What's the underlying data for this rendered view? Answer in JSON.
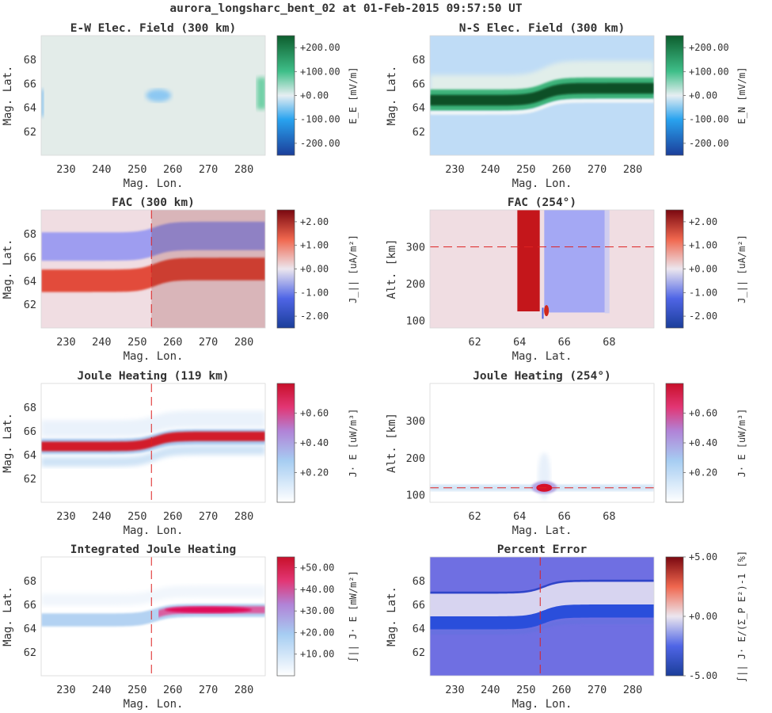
{
  "figure": {
    "suptitle": "aurora_longsharc_bent_02 at 01-Feb-2015 09:57:50 UT"
  },
  "colors": {
    "green": "#1a7a48",
    "blue": "#1e78d6",
    "deepblue": "#1b3e9a",
    "red": "#c0191d",
    "crimson": "#c5102a",
    "lavender": "#d7d4f0",
    "pink": "#f0dde2"
  },
  "chart_data": [
    {
      "id": "ew_field",
      "type": "heatmap",
      "title": "E-W Elec. Field (300 km)",
      "xlabel": "Mag. Lon.",
      "ylabel": "Mag. Lat.",
      "xticks": [
        "230",
        "240",
        "250",
        "260",
        "270",
        "280"
      ],
      "yticks": [
        "62",
        "64",
        "66",
        "68"
      ],
      "xlim": [
        223,
        286
      ],
      "ylim": [
        60,
        70
      ],
      "colorbar": {
        "label": "E_E [mV/m]",
        "ticks": [
          "+200.00",
          "+100.00",
          "+0.00",
          "-100.00",
          "-200.00"
        ],
        "range": [
          -250,
          250
        ],
        "colormap": "diverging green-white-blue"
      },
      "features": [
        "weak negative patch near lon 256, lat 65",
        "weak positive band at east edge lon 284",
        "weak negative band at west edge"
      ]
    },
    {
      "id": "ns_field",
      "type": "heatmap",
      "title": "N-S Elec. Field (300 km)",
      "xlabel": "Mag. Lon.",
      "ylabel": "Mag. Lat.",
      "xticks": [
        "230",
        "240",
        "250",
        "260",
        "270",
        "280"
      ],
      "yticks": [
        "62",
        "64",
        "66",
        "68"
      ],
      "xlim": [
        223,
        286
      ],
      "ylim": [
        60,
        70
      ],
      "colorbar": {
        "label": "E_N [mV/m]",
        "ticks": [
          "+200.00",
          "+100.00",
          "+0.00",
          "-100.00",
          "-200.00"
        ],
        "range": [
          -250,
          250
        ],
        "colormap": "diverging green-white-blue"
      },
      "features": [
        "strong positive arc lat 64.6 west bending to 65.6 east near lon 254",
        "negative field north and south of arc"
      ]
    },
    {
      "id": "fac_map",
      "type": "heatmap",
      "title": "FAC (300 km)",
      "xlabel": "Mag. Lon.",
      "ylabel": "Mag. Lat.",
      "xticks": [
        "230",
        "240",
        "250",
        "260",
        "270",
        "280"
      ],
      "yticks": [
        "62",
        "64",
        "66",
        "68"
      ],
      "xlim": [
        223,
        286
      ],
      "ylim": [
        60,
        70
      ],
      "cut_lon": 254,
      "colorbar": {
        "label": "J_|| [uA/m²]",
        "ticks": [
          "+2.00",
          "+1.00",
          "+0.00",
          "-1.00",
          "-2.00"
        ],
        "range": [
          -2.5,
          2.5
        ],
        "colormap": "coolwarm"
      },
      "features": [
        "upward current band lat 64 west to 65 east, about +1.5",
        "downward current band lat 67 west to 67.8 east, about -0.8"
      ]
    },
    {
      "id": "fac_cut",
      "type": "heatmap",
      "title": "FAC (254°)",
      "xlabel": "Mag. Lat.",
      "ylabel": "Alt. [km]",
      "xticks": [
        "62",
        "64",
        "66",
        "68"
      ],
      "yticks": [
        "100",
        "200",
        "300"
      ],
      "xlim": [
        60,
        70
      ],
      "ylim": [
        80,
        400
      ],
      "cut_alt": 300,
      "colorbar": {
        "label": "J_|| [uA/m²]",
        "ticks": [
          "+2.00",
          "+1.00",
          "+0.00",
          "-1.00",
          "-2.00"
        ],
        "range": [
          -2.5,
          2.5
        ],
        "colormap": "coolwarm"
      },
      "features": [
        "upward column lat 63.9-64.9 above 125 km",
        "downward column lat 65.1-67.8 above 120 km"
      ]
    },
    {
      "id": "joule_map",
      "type": "heatmap",
      "title": "Joule Heating (119 km)",
      "xlabel": "Mag. Lon.",
      "ylabel": "Mag. Lat.",
      "xticks": [
        "230",
        "240",
        "250",
        "260",
        "270",
        "280"
      ],
      "yticks": [
        "62",
        "64",
        "66",
        "68"
      ],
      "xlim": [
        223,
        286
      ],
      "ylim": [
        60,
        70
      ],
      "cut_lon": 254,
      "colorbar": {
        "label": "J· E [uW/m³]",
        "ticks": [
          "+0.60",
          "+0.40",
          "+0.20"
        ],
        "range": [
          0,
          0.8
        ],
        "colormap": "white-blue-red"
      },
      "features": [
        "heating band along arc, up to ~0.7"
      ]
    },
    {
      "id": "joule_cut",
      "type": "heatmap",
      "title": "Joule Heating (254°)",
      "xlabel": "Mag. Lat.",
      "ylabel": "Alt. [km]",
      "xticks": [
        "62",
        "64",
        "66",
        "68"
      ],
      "yticks": [
        "100",
        "200",
        "300"
      ],
      "xlim": [
        60,
        70
      ],
      "ylim": [
        80,
        400
      ],
      "cut_alt": 119,
      "colorbar": {
        "label": "J· E [uW/m³]",
        "ticks": [
          "+0.60",
          "+0.40",
          "+0.20"
        ],
        "range": [
          0,
          0.8
        ],
        "colormap": "white-blue-red"
      },
      "features": [
        "peak at lat 65.1, alt 119 km"
      ]
    },
    {
      "id": "int_joule",
      "type": "heatmap",
      "title": "Integrated Joule Heating",
      "xlabel": "Mag. Lon.",
      "ylabel": "Mag. Lat.",
      "xticks": [
        "230",
        "240",
        "250",
        "260",
        "270",
        "280"
      ],
      "yticks": [
        "62",
        "64",
        "66",
        "68"
      ],
      "xlim": [
        223,
        286
      ],
      "ylim": [
        60,
        70
      ],
      "cut_lon": 254,
      "colorbar": {
        "label": "∫|| J· E [mW/m²]",
        "ticks": [
          "+50.00",
          "+40.00",
          "+30.00",
          "+20.00",
          "+10.00"
        ],
        "range": [
          0,
          55
        ],
        "colormap": "white-blue-red"
      },
      "features": [
        "band along arc ~15 west, ~45 east"
      ]
    },
    {
      "id": "pct_error",
      "type": "heatmap",
      "title": "Percent Error",
      "xlabel": "Mag. Lon.",
      "ylabel": "Mag. Lat.",
      "xticks": [
        "230",
        "240",
        "250",
        "260",
        "270",
        "280"
      ],
      "yticks": [
        "62",
        "64",
        "66",
        "68"
      ],
      "xlim": [
        223,
        286
      ],
      "ylim": [
        60,
        70
      ],
      "cut_lon": 254,
      "colorbar": {
        "label": "∫|| J· E/(Σ_P E²)-1 [%]",
        "ticks": [
          "+5.00",
          "+0.00",
          "-5.00"
        ],
        "range": [
          -5,
          5
        ],
        "colormap": "coolwarm"
      },
      "features": [
        "background about -3",
        "strong negative band below arc about -5",
        "near-zero band between arc and lat 67",
        "thin negative line at lat 67 west / 68 east"
      ]
    }
  ]
}
